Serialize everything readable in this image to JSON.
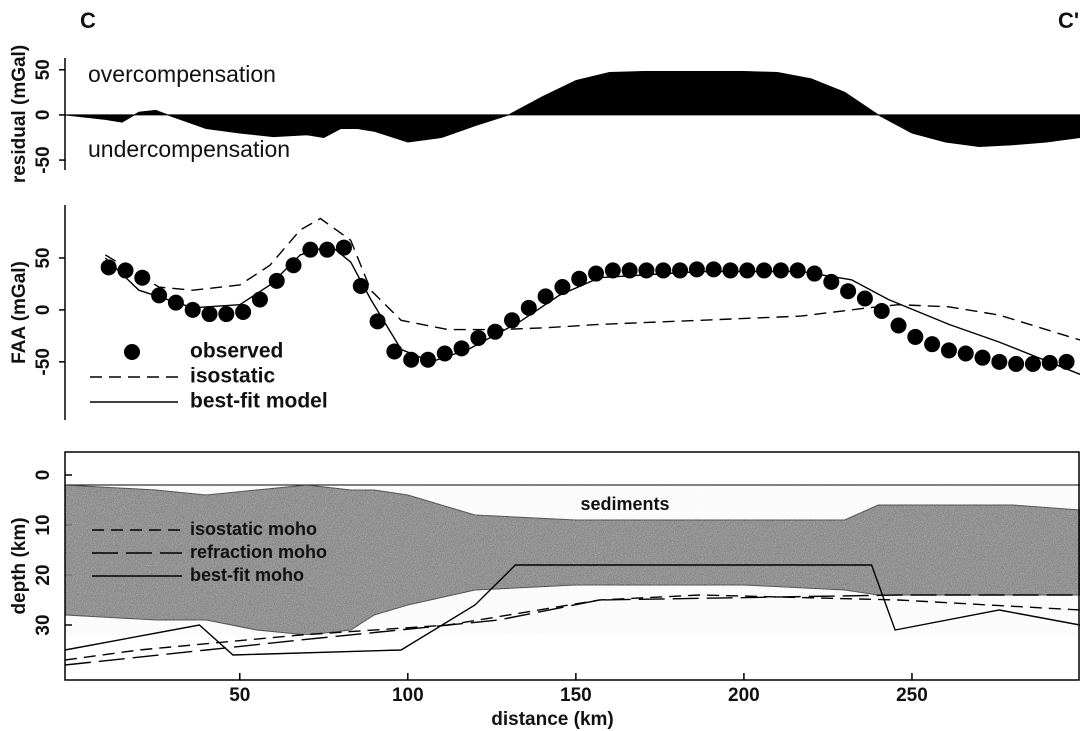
{
  "panel_labels": [
    "C",
    "C'"
  ],
  "chart_data": [
    {
      "type": "area",
      "y_label": "residual (mGal)",
      "color": "#000000",
      "annotations": [
        "overcompensation",
        "undercompensation"
      ],
      "xlim": [
        -2,
        300
      ],
      "ylim": [
        -61,
        63
      ],
      "yticks": [
        50,
        0,
        -50
      ],
      "x": [
        -2,
        10,
        15,
        20,
        25,
        30,
        40,
        50,
        60,
        70,
        75,
        80,
        85,
        90,
        100,
        110,
        120,
        130,
        140,
        150,
        160,
        170,
        180,
        190,
        200,
        210,
        220,
        230,
        240,
        250,
        260,
        270,
        280,
        290,
        300
      ],
      "values": [
        0,
        -5,
        -8,
        3,
        5,
        -2,
        -15,
        -20,
        -24,
        -22,
        -25,
        -15,
        -15,
        -18,
        -30,
        -25,
        -12,
        0,
        20,
        38,
        47,
        48,
        48,
        48,
        48,
        47,
        40,
        25,
        0,
        -20,
        -30,
        -35,
        -33,
        -30,
        -25
      ]
    },
    {
      "type": "line",
      "y_label": "FAA (mGal)",
      "xlim": [
        -2,
        300
      ],
      "ylim": [
        -106,
        101
      ],
      "yticks": [
        50,
        0,
        -50
      ],
      "legend": true,
      "series": [
        {
          "name": "observed",
          "marker": "circle",
          "color": "#000000",
          "x": [
            11,
            16,
            21,
            26,
            31,
            36,
            41,
            46,
            51,
            56,
            61,
            66,
            71,
            76,
            81,
            86,
            91,
            96,
            101,
            106,
            111,
            116,
            121,
            126,
            131,
            136,
            141,
            146,
            151,
            156,
            161,
            166,
            171,
            176,
            181,
            186,
            191,
            196,
            201,
            206,
            211,
            216,
            221,
            226,
            231,
            236,
            241,
            246,
            251,
            256,
            261,
            266,
            271,
            276,
            281,
            286,
            291,
            296
          ],
          "values": [
            41,
            38,
            31,
            14,
            7,
            0,
            -4,
            -4,
            -2,
            10,
            28,
            43,
            58,
            58,
            60,
            23,
            -11,
            -40,
            -48,
            -48,
            -42,
            -37,
            -27,
            -21,
            -10,
            2,
            13,
            22,
            30,
            35,
            38,
            38,
            38,
            38,
            38,
            39,
            39,
            38,
            38,
            38,
            38,
            38,
            35,
            27,
            18,
            11,
            -1,
            -15,
            -26,
            -33,
            -39,
            -42,
            -46,
            -50,
            -52,
            -52,
            -51,
            -50
          ]
        },
        {
          "name": "isostatic",
          "dash": "dashed",
          "color": "#000000",
          "x": [
            10,
            26,
            36,
            50,
            59,
            68,
            74,
            83,
            89,
            98,
            112,
            127,
            142,
            157,
            187,
            217,
            237,
            246,
            261,
            276,
            300
          ],
          "values": [
            53,
            22,
            19,
            24,
            43,
            77,
            88,
            67,
            19,
            -10,
            -19,
            -19,
            -17,
            -14,
            -10,
            -6,
            2,
            5,
            3,
            -5,
            -29
          ]
        },
        {
          "name": "best-fit model",
          "dash": "solid",
          "color": "#000000",
          "x": [
            10,
            20,
            36,
            50,
            59,
            68,
            77,
            83,
            89,
            98,
            107,
            118,
            133,
            145,
            157,
            187,
            217,
            232,
            243,
            261,
            276,
            300
          ],
          "values": [
            50,
            19,
            2,
            5,
            24,
            53,
            62,
            46,
            10,
            -38,
            -50,
            -38,
            -12,
            14,
            31,
            37,
            37,
            29,
            10,
            -14,
            -31,
            -62
          ]
        }
      ]
    },
    {
      "type": "section",
      "y_label": "depth (km)",
      "x_label": "distance (km)",
      "xlim": [
        -2,
        300
      ],
      "ylim": [
        41,
        -4.6
      ],
      "yticks": [
        0,
        10,
        20,
        30
      ],
      "xticks": [
        50,
        100,
        150,
        200,
        250
      ],
      "annotations": [
        "sediments"
      ],
      "legend": true,
      "crust": {
        "color": "#8c8c8c",
        "x": [
          -2,
          25,
          40,
          55,
          70,
          83,
          90,
          100,
          120,
          150,
          200,
          230,
          240,
          260,
          280,
          300
        ],
        "top": [
          2,
          3,
          4,
          3,
          2,
          3,
          3,
          4,
          8,
          9,
          9,
          9,
          6,
          6,
          6,
          7
        ],
        "bottom": [
          28,
          29,
          29,
          31,
          32,
          31,
          28,
          26,
          23,
          22,
          22,
          23,
          24,
          24,
          24,
          24
        ]
      },
      "series": [
        {
          "name": "isostatic moho",
          "dash": "dashed",
          "color": "#000000",
          "x": [
            -2,
            20,
            68,
            112,
            157,
            187,
            246,
            300
          ],
          "values": [
            37,
            35,
            32,
            30,
            25,
            24,
            25,
            27
          ]
        },
        {
          "name": "refraction moho",
          "dash": "longdash",
          "color": "#000000",
          "x": [
            -2,
            68,
            127,
            157,
            246,
            300
          ],
          "values": [
            38,
            33,
            29,
            25,
            24,
            24
          ]
        },
        {
          "name": "best-fit moho",
          "dash": "solid",
          "color": "#000000",
          "x": [
            -2,
            38,
            48,
            98,
            120,
            132,
            238,
            245,
            276,
            300
          ],
          "values": [
            35,
            30,
            36,
            35,
            26,
            18,
            18,
            31,
            27,
            30
          ]
        }
      ]
    }
  ]
}
